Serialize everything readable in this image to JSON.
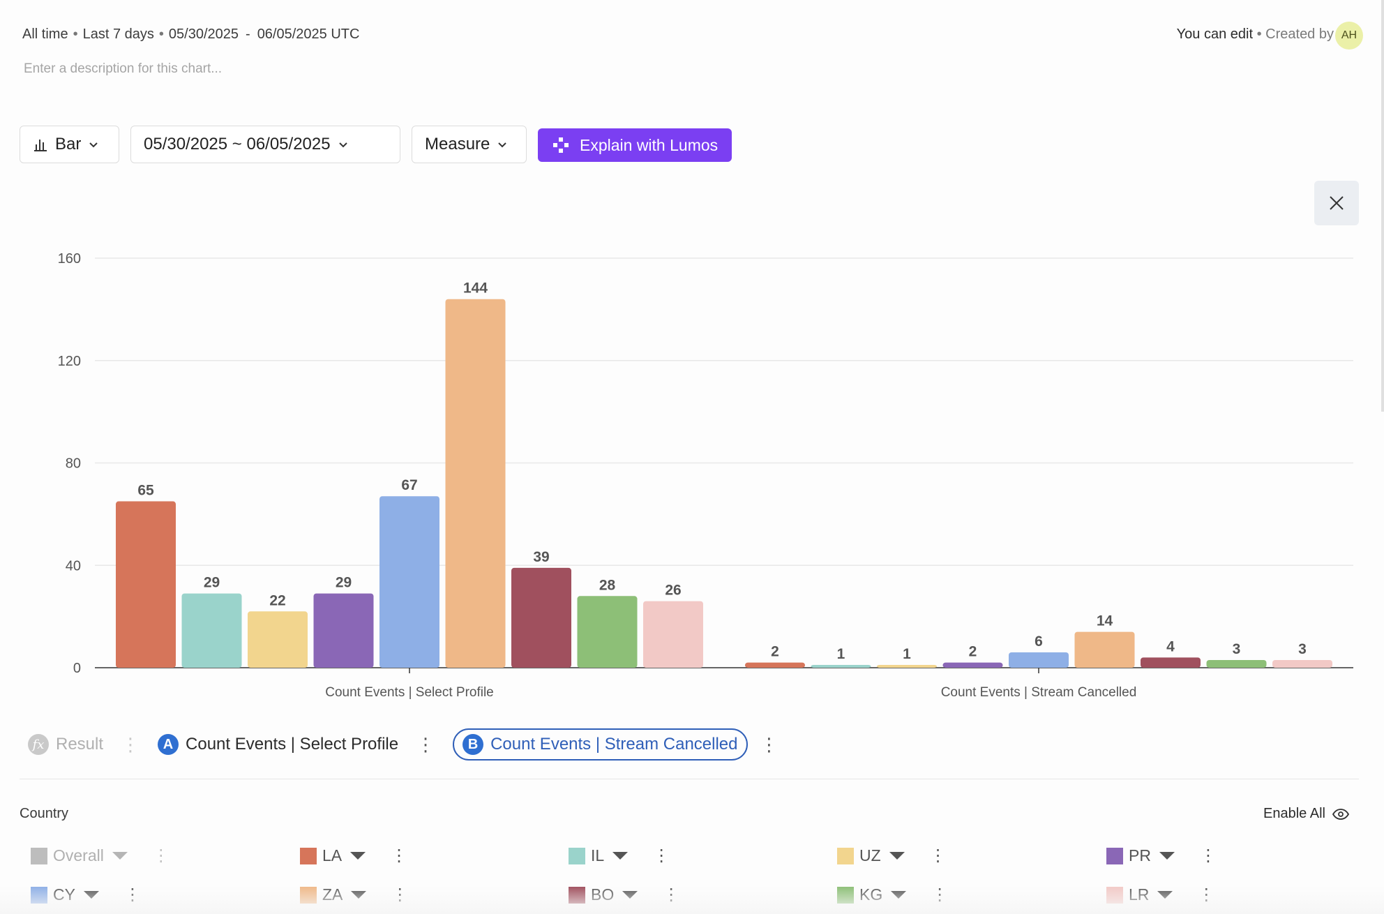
{
  "header": {
    "range_all": "All time",
    "range_last": "Last 7 days",
    "date_start": "05/30/2025",
    "date_end": "06/05/2025",
    "tz": "UTC",
    "description_placeholder": "Enter a description for this chart...",
    "permission": "You can edit",
    "created_by": "Created by",
    "avatar_initials": "AH"
  },
  "toolbar": {
    "chart_type": "Bar",
    "date_range": "05/30/2025 ~ 06/05/2025",
    "measure": "Measure",
    "explain": "Explain with Lumos"
  },
  "chart_data": {
    "type": "bar",
    "categories": [
      "Count Events | Select Profile",
      "Count Events | Stream Cancelled"
    ],
    "series": [
      {
        "name": "LA",
        "color": "#d6755a",
        "values": [
          65,
          2
        ]
      },
      {
        "name": "IL",
        "color": "#9ad3cb",
        "values": [
          29,
          1
        ]
      },
      {
        "name": "UZ",
        "color": "#f2d58e",
        "values": [
          22,
          1
        ]
      },
      {
        "name": "PR",
        "color": "#8a67b6",
        "values": [
          29,
          2
        ]
      },
      {
        "name": "CY",
        "color": "#8eafe6",
        "values": [
          67,
          6
        ]
      },
      {
        "name": "ZA",
        "color": "#efb888",
        "values": [
          144,
          14
        ]
      },
      {
        "name": "BO",
        "color": "#a0505e",
        "values": [
          39,
          4
        ]
      },
      {
        "name": "KG",
        "color": "#8dbf77",
        "values": [
          28,
          3
        ]
      },
      {
        "name": "LR",
        "color": "#f2c9c6",
        "values": [
          26,
          3
        ]
      }
    ],
    "ylim": [
      0,
      160
    ],
    "yticks": [
      0,
      40,
      80,
      120,
      160
    ],
    "grid": true,
    "data_labels": true
  },
  "series_selector": {
    "result": {
      "icon": "fx",
      "label": "Result"
    },
    "a": {
      "badge": "A",
      "label": "Count Events | Select Profile"
    },
    "b": {
      "badge": "B",
      "label": "Count Events | Stream Cancelled"
    }
  },
  "legend": {
    "title": "Country",
    "enable_all": "Enable All",
    "items": [
      {
        "label": "Overall",
        "color": "#bdbdbd"
      },
      {
        "label": "LA",
        "color": "#d6755a"
      },
      {
        "label": "IL",
        "color": "#9ad3cb"
      },
      {
        "label": "UZ",
        "color": "#f2d58e"
      },
      {
        "label": "PR",
        "color": "#8a67b6"
      },
      {
        "label": "CY",
        "color": "#8eafe6"
      },
      {
        "label": "ZA",
        "color": "#efb888"
      },
      {
        "label": "BO",
        "color": "#a0505e"
      },
      {
        "label": "KG",
        "color": "#8dbf77"
      },
      {
        "label": "LR",
        "color": "#f2c9c6"
      }
    ]
  }
}
